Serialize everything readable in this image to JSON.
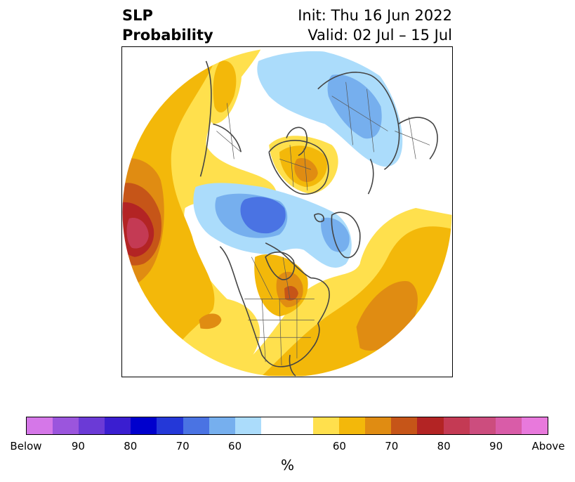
{
  "header": {
    "title_line1": "SLP",
    "title_line2": "Probability",
    "init_label": "Init: Thu 16 Jun 2022",
    "valid_label": "Valid: 02 Jul – 15 Jul"
  },
  "colorbar": {
    "unit": "%",
    "tick_labels": [
      "Below",
      "90",
      "80",
      "70",
      "60",
      "60",
      "70",
      "80",
      "90",
      "Above"
    ],
    "below_colors": [
      "#d577e8",
      "#9b55dd",
      "#6b3ad6",
      "#3a1ed0",
      "#0000cd",
      "#2438d8",
      "#4a73e3",
      "#76afee",
      "#abdcfb"
    ],
    "above_colors": [
      "#ffe04d",
      "#f3b80a",
      "#e08c12",
      "#c65518",
      "#b32424",
      "#c43a54",
      "#cc4d7e",
      "#d95ca8",
      "#e879dc"
    ],
    "neutral_color": "#ffffff"
  }
}
